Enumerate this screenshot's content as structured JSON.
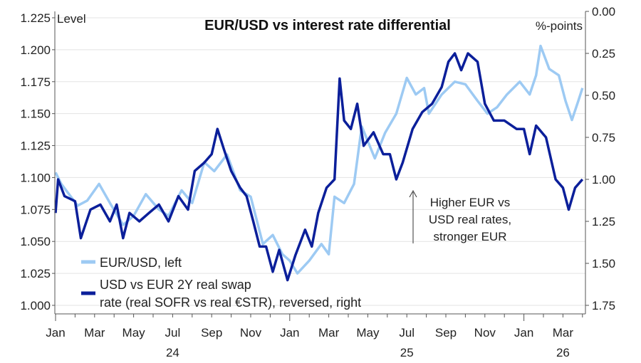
{
  "chart_data": {
    "type": "line",
    "title": "EUR/USD vs interest rate differential",
    "left_axis": {
      "label": "Level",
      "ylim": [
        1.0,
        1.23
      ],
      "ticks": [
        "1.000",
        "1.025",
        "1.050",
        "1.075",
        "1.100",
        "1.125",
        "1.150",
        "1.175",
        "1.200",
        "1.225"
      ]
    },
    "right_axis": {
      "label": "%-points",
      "ylim": [
        0,
        1.75
      ],
      "reversed": true,
      "ticks": [
        "0.00",
        "0.25",
        "0.50",
        "0.75",
        "1.00",
        "1.25",
        "1.50",
        "1.75"
      ]
    },
    "x_ticks": [
      "Jan",
      "Mar",
      "May",
      "Jul",
      "Sep",
      "Nov",
      "Jan",
      "Mar",
      "May",
      "Jul",
      "Sep",
      "Nov",
      "Jan",
      "Mar"
    ],
    "x_years": [
      {
        "label": "24",
        "month": 6
      },
      {
        "label": "25",
        "month": 18
      },
      {
        "label": "26",
        "month": 26
      }
    ],
    "grid": true,
    "legend_position": "bottom-left",
    "annotation": [
      "Higher EUR vs",
      "USD real rates,",
      "stronger EUR"
    ],
    "series": [
      {
        "name": "EUR/USD, left",
        "axis": "left",
        "color": "#9dcaf3",
        "legend": [
          "EUR/USD, left"
        ],
        "points": [
          [
            "2024-01-01",
            1.104
          ],
          [
            "2024-01-10",
            1.095
          ],
          [
            "2024-01-25",
            1.085
          ],
          [
            "2024-02-05",
            1.078
          ],
          [
            "2024-02-20",
            1.082
          ],
          [
            "2024-03-08",
            1.095
          ],
          [
            "2024-03-25",
            1.08
          ],
          [
            "2024-04-15",
            1.063
          ],
          [
            "2024-05-01",
            1.07
          ],
          [
            "2024-05-20",
            1.087
          ],
          [
            "2024-06-10",
            1.075
          ],
          [
            "2024-06-25",
            1.07
          ],
          [
            "2024-07-15",
            1.09
          ],
          [
            "2024-08-01",
            1.08
          ],
          [
            "2024-08-20",
            1.112
          ],
          [
            "2024-09-05",
            1.105
          ],
          [
            "2024-09-25",
            1.118
          ],
          [
            "2024-10-15",
            1.09
          ],
          [
            "2024-11-01",
            1.085
          ],
          [
            "2024-11-20",
            1.048
          ],
          [
            "2024-12-05",
            1.055
          ],
          [
            "2024-12-20",
            1.04
          ],
          [
            "2025-01-01",
            1.035
          ],
          [
            "2025-01-13",
            1.025
          ],
          [
            "2025-02-01",
            1.035
          ],
          [
            "2025-02-20",
            1.048
          ],
          [
            "2025-03-01",
            1.04
          ],
          [
            "2025-03-10",
            1.085
          ],
          [
            "2025-03-25",
            1.08
          ],
          [
            "2025-04-10",
            1.095
          ],
          [
            "2025-04-22",
            1.14
          ],
          [
            "2025-05-12",
            1.115
          ],
          [
            "2025-05-28",
            1.135
          ],
          [
            "2025-06-15",
            1.15
          ],
          [
            "2025-07-01",
            1.178
          ],
          [
            "2025-07-15",
            1.165
          ],
          [
            "2025-07-28",
            1.17
          ],
          [
            "2025-08-05",
            1.15
          ],
          [
            "2025-08-25",
            1.165
          ],
          [
            "2025-09-15",
            1.175
          ],
          [
            "2025-10-01",
            1.173
          ],
          [
            "2025-10-20",
            1.16
          ],
          [
            "2025-11-05",
            1.15
          ],
          [
            "2025-11-20",
            1.155
          ],
          [
            "2025-12-05",
            1.165
          ],
          [
            "2025-12-25",
            1.175
          ],
          [
            "2026-01-10",
            1.165
          ],
          [
            "2026-01-20",
            1.18
          ],
          [
            "2026-01-27",
            1.203
          ],
          [
            "2026-02-10",
            1.185
          ],
          [
            "2026-02-25",
            1.18
          ],
          [
            "2026-03-05",
            1.16
          ],
          [
            "2026-03-15",
            1.145
          ],
          [
            "2026-03-25",
            1.16
          ],
          [
            "2026-04-01",
            1.17
          ]
        ]
      },
      {
        "name": "USD vs EUR 2Y real swap rate (real SOFR vs real €STR), reversed, right",
        "axis": "right",
        "color": "#0b1f9a",
        "legend": [
          "USD vs EUR 2Y real swap",
          "rate (real SOFR vs real €STR), reversed, right"
        ],
        "points": [
          [
            "2024-01-01",
            1.2
          ],
          [
            "2024-01-05",
            1.0
          ],
          [
            "2024-01-15",
            1.1
          ],
          [
            "2024-02-01",
            1.13
          ],
          [
            "2024-02-10",
            1.35
          ],
          [
            "2024-02-25",
            1.18
          ],
          [
            "2024-03-10",
            1.15
          ],
          [
            "2024-03-25",
            1.25
          ],
          [
            "2024-04-05",
            1.15
          ],
          [
            "2024-04-15",
            1.35
          ],
          [
            "2024-04-25",
            1.2
          ],
          [
            "2024-05-10",
            1.25
          ],
          [
            "2024-05-25",
            1.2
          ],
          [
            "2024-06-10",
            1.15
          ],
          [
            "2024-06-25",
            1.25
          ],
          [
            "2024-07-10",
            1.1
          ],
          [
            "2024-07-25",
            1.18
          ],
          [
            "2024-08-05",
            0.95
          ],
          [
            "2024-08-20",
            0.9
          ],
          [
            "2024-09-01",
            0.85
          ],
          [
            "2024-09-10",
            0.7
          ],
          [
            "2024-09-20",
            0.82
          ],
          [
            "2024-10-01",
            0.95
          ],
          [
            "2024-10-15",
            1.05
          ],
          [
            "2024-10-25",
            1.1
          ],
          [
            "2024-11-05",
            1.25
          ],
          [
            "2024-11-15",
            1.4
          ],
          [
            "2024-11-25",
            1.4
          ],
          [
            "2024-12-05",
            1.55
          ],
          [
            "2024-12-15",
            1.42
          ],
          [
            "2024-12-28",
            1.6
          ],
          [
            "2025-01-10",
            1.45
          ],
          [
            "2025-01-25",
            1.3
          ],
          [
            "2025-02-05",
            1.4
          ],
          [
            "2025-02-15",
            1.2
          ],
          [
            "2025-02-28",
            1.05
          ],
          [
            "2025-03-10",
            1.0
          ],
          [
            "2025-03-18",
            0.4
          ],
          [
            "2025-03-25",
            0.65
          ],
          [
            "2025-04-05",
            0.7
          ],
          [
            "2025-04-15",
            0.55
          ],
          [
            "2025-04-25",
            0.8
          ],
          [
            "2025-05-10",
            0.72
          ],
          [
            "2025-05-25",
            0.85
          ],
          [
            "2025-06-05",
            0.85
          ],
          [
            "2025-06-15",
            1.0
          ],
          [
            "2025-06-25",
            0.9
          ],
          [
            "2025-07-10",
            0.7
          ],
          [
            "2025-07-25",
            0.6
          ],
          [
            "2025-08-10",
            0.55
          ],
          [
            "2025-08-25",
            0.45
          ],
          [
            "2025-09-05",
            0.3
          ],
          [
            "2025-09-15",
            0.25
          ],
          [
            "2025-09-25",
            0.35
          ],
          [
            "2025-10-05",
            0.25
          ],
          [
            "2025-10-20",
            0.3
          ],
          [
            "2025-11-01",
            0.55
          ],
          [
            "2025-11-15",
            0.65
          ],
          [
            "2025-12-01",
            0.65
          ],
          [
            "2025-12-20",
            0.7
          ],
          [
            "2026-01-01",
            0.7
          ],
          [
            "2026-01-10",
            0.85
          ],
          [
            "2026-01-20",
            0.68
          ],
          [
            "2026-02-05",
            0.75
          ],
          [
            "2026-02-20",
            1.0
          ],
          [
            "2026-03-01",
            1.05
          ],
          [
            "2026-03-10",
            1.18
          ],
          [
            "2026-03-20",
            1.05
          ],
          [
            "2026-04-01",
            1.0
          ]
        ]
      }
    ]
  }
}
